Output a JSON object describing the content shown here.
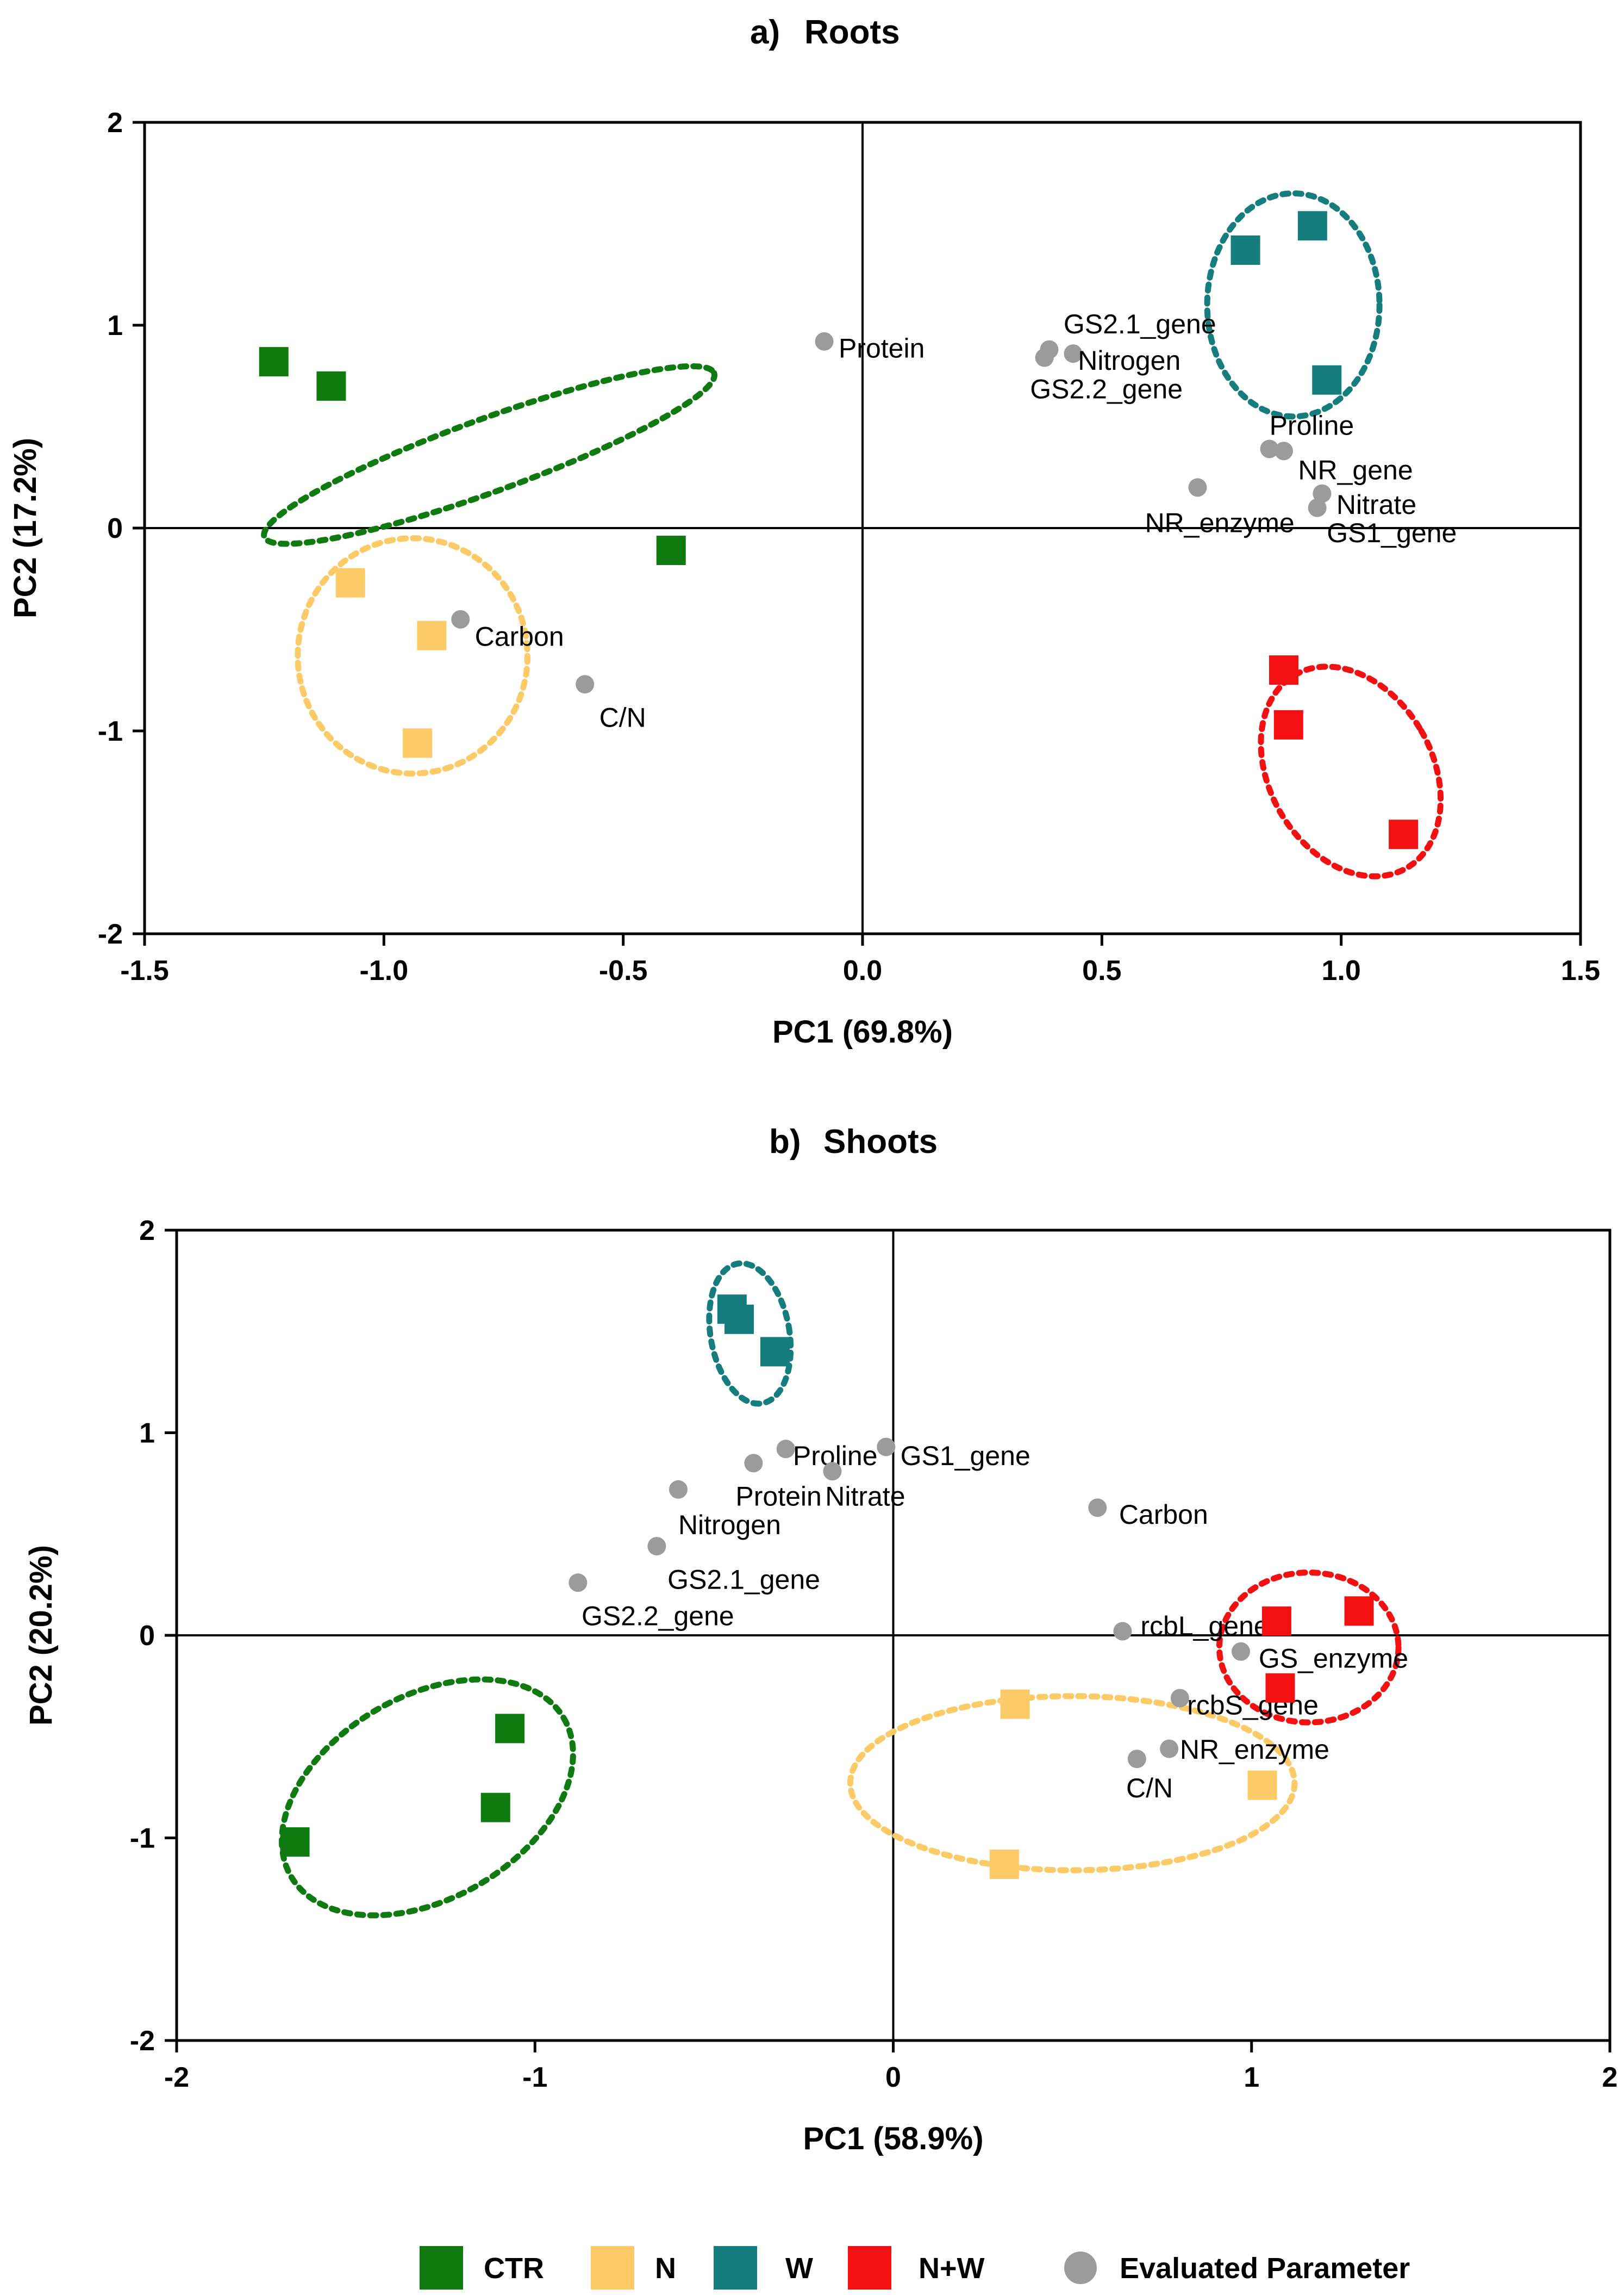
{
  "colors": {
    "CTR": "#0f7a0f",
    "N": "#fcca66",
    "W": "#167d7e",
    "N+W": "#f41010",
    "parameter": "#9b9b9b"
  },
  "legend": {
    "items": [
      {
        "key": "CTR",
        "label": "CTR",
        "marker": "square"
      },
      {
        "key": "N",
        "label": "N",
        "marker": "square"
      },
      {
        "key": "W",
        "label": "W",
        "marker": "square"
      },
      {
        "key": "N+W",
        "label": "N+W",
        "marker": "square"
      },
      {
        "key": "parameter",
        "label": "Evaluated Parameter",
        "marker": "circle"
      }
    ]
  },
  "chart_data": [
    {
      "type": "scatter",
      "panel_label": "a)",
      "title": "Roots",
      "xlabel": "PC1 (69.8%)",
      "ylabel": "PC2 (17.2%)",
      "xlim": [
        -1.5,
        1.5
      ],
      "ylim": [
        -2,
        2
      ],
      "xticks": [
        -1.5,
        -1.0,
        -0.5,
        0.0,
        0.5,
        1.0,
        1.5
      ],
      "xtick_labels": [
        "-1.5",
        "-1.0",
        "-0.5",
        "0.0",
        "0.5",
        "1.0",
        "1.5"
      ],
      "yticks": [
        -2,
        -1,
        0,
        1,
        2
      ],
      "ytick_labels": [
        "-2",
        "-1",
        "0",
        "1",
        "2"
      ],
      "groups": [
        {
          "name": "CTR",
          "points": [
            [
              -1.23,
              0.82
            ],
            [
              -1.11,
              0.7
            ],
            [
              -0.4,
              -0.11
            ]
          ]
        },
        {
          "name": "N",
          "points": [
            [
              -1.07,
              -0.27
            ],
            [
              -0.9,
              -0.53
            ],
            [
              -0.93,
              -1.06
            ]
          ]
        },
        {
          "name": "W",
          "points": [
            [
              0.8,
              1.37
            ],
            [
              0.94,
              1.49
            ],
            [
              0.97,
              0.73
            ]
          ]
        },
        {
          "name": "N+W",
          "points": [
            [
              0.88,
              -0.7
            ],
            [
              0.89,
              -0.97
            ],
            [
              1.13,
              -1.51
            ]
          ]
        }
      ],
      "ellipses": [
        {
          "group": "CTR",
          "cx": -0.78,
          "cy": 0.36,
          "rx": 0.5,
          "ry": 0.18,
          "angle_deg": -20
        },
        {
          "group": "N",
          "cx": -0.94,
          "cy": -0.63,
          "rx": 0.24,
          "ry": 0.58,
          "angle_deg": 0
        },
        {
          "group": "W",
          "cx": 0.9,
          "cy": 1.1,
          "rx": 0.18,
          "ry": 0.55,
          "angle_deg": 0
        },
        {
          "group": "N+W",
          "cx": 1.02,
          "cy": -1.2,
          "rx": 0.17,
          "ry": 0.55,
          "angle_deg": -30
        }
      ],
      "parameters": [
        {
          "name": "Protein",
          "x": -0.08,
          "y": 0.92,
          "anchor": "start",
          "dx": 0.03,
          "dy": -0.08
        },
        {
          "name": "GS2.1_gene",
          "x": 0.39,
          "y": 0.88,
          "anchor": "start",
          "dx": 0.03,
          "dy": 0.08
        },
        {
          "name": "Nitrogen",
          "x": 0.44,
          "y": 0.86,
          "anchor": "start",
          "dx": 0.01,
          "dy": -0.08
        },
        {
          "name": "GS2.2_gene",
          "x": 0.38,
          "y": 0.84,
          "anchor": "start",
          "dx": -0.03,
          "dy": -0.2
        },
        {
          "name": "Proline",
          "x": 0.85,
          "y": 0.39,
          "anchor": "start",
          "dx": 0.0,
          "dy": 0.07
        },
        {
          "name": "NR_gene",
          "x": 0.88,
          "y": 0.38,
          "anchor": "start",
          "dx": 0.03,
          "dy": -0.14
        },
        {
          "name": "Nitrate",
          "x": 0.96,
          "y": 0.17,
          "anchor": "start",
          "dx": 0.03,
          "dy": -0.1
        },
        {
          "name": "NR_enzyme",
          "x": 0.7,
          "y": 0.2,
          "anchor": "start",
          "dx": -0.11,
          "dy": -0.22
        },
        {
          "name": "GS1_gene",
          "x": 0.95,
          "y": 0.1,
          "anchor": "start",
          "dx": 0.02,
          "dy": -0.17
        },
        {
          "name": "Carbon",
          "x": -0.84,
          "y": -0.45,
          "anchor": "start",
          "dx": 0.03,
          "dy": -0.13
        },
        {
          "name": "C/N",
          "x": -0.58,
          "y": -0.77,
          "anchor": "start",
          "dx": 0.03,
          "dy": -0.21
        }
      ]
    },
    {
      "type": "scatter",
      "panel_label": "b)",
      "title": "Shoots",
      "xlabel": "PC1 (58.9%)",
      "ylabel": "PC2 (20.2%)",
      "xlim": [
        -2,
        2
      ],
      "ylim": [
        -2,
        2
      ],
      "xticks": [
        -2,
        -1,
        0,
        1,
        2
      ],
      "xtick_labels": [
        "-2",
        "-1",
        "0",
        "1",
        "2"
      ],
      "yticks": [
        -2,
        -1,
        0,
        1,
        2
      ],
      "ytick_labels": [
        "-2",
        "-1",
        "0",
        "1",
        "2"
      ],
      "groups": [
        {
          "name": "CTR",
          "points": [
            [
              -1.07,
              -0.46
            ],
            [
              -1.11,
              -0.85
            ],
            [
              -1.67,
              -1.02
            ]
          ]
        },
        {
          "name": "N",
          "points": [
            [
              0.34,
              -0.34
            ],
            [
              0.31,
              -1.13
            ],
            [
              1.03,
              -0.74
            ]
          ]
        },
        {
          "name": "W",
          "points": [
            [
              -0.45,
              1.61
            ],
            [
              -0.43,
              1.56
            ],
            [
              -0.33,
              1.4
            ]
          ]
        },
        {
          "name": "N+W",
          "points": [
            [
              1.07,
              0.07
            ],
            [
              1.3,
              0.12
            ],
            [
              1.08,
              -0.26
            ]
          ]
        }
      ],
      "ellipses": [
        {
          "group": "CTR",
          "cx": -1.3,
          "cy": -0.8,
          "rx": 0.44,
          "ry": 0.5,
          "angle_deg": -30
        },
        {
          "group": "N",
          "cx": 0.5,
          "cy": -0.73,
          "rx": 0.62,
          "ry": 0.43,
          "angle_deg": 0
        },
        {
          "group": "W",
          "cx": -0.4,
          "cy": 1.49,
          "rx": 0.11,
          "ry": 0.35,
          "angle_deg": -10
        },
        {
          "group": "N+W",
          "cx": 1.16,
          "cy": -0.06,
          "rx": 0.25,
          "ry": 0.37,
          "angle_deg": 0
        }
      ],
      "parameters": [
        {
          "name": "Proline",
          "x": -0.3,
          "y": 0.92,
          "anchor": "start",
          "dx": 0.02,
          "dy": -0.08
        },
        {
          "name": "GS1_gene",
          "x": -0.02,
          "y": 0.93,
          "anchor": "start",
          "dx": 0.04,
          "dy": -0.09
        },
        {
          "name": "Protein",
          "x": -0.39,
          "y": 0.85,
          "anchor": "start",
          "dx": -0.05,
          "dy": -0.21
        },
        {
          "name": "Nitrate",
          "x": -0.17,
          "y": 0.81,
          "anchor": "start",
          "dx": -0.02,
          "dy": -0.17
        },
        {
          "name": "Nitrogen",
          "x": -0.6,
          "y": 0.72,
          "anchor": "start",
          "dx": 0.0,
          "dy": -0.22
        },
        {
          "name": "GS2.1_gene",
          "x": -0.66,
          "y": 0.44,
          "anchor": "start",
          "dx": 0.03,
          "dy": -0.21
        },
        {
          "name": "GS2.2_gene",
          "x": -0.88,
          "y": 0.26,
          "anchor": "start",
          "dx": 0.01,
          "dy": -0.21
        },
        {
          "name": "Carbon",
          "x": 0.57,
          "y": 0.63,
          "anchor": "start",
          "dx": 0.06,
          "dy": -0.08
        },
        {
          "name": "rcbL_gene",
          "x": 0.64,
          "y": 0.02,
          "anchor": "start",
          "dx": 0.05,
          "dy": -0.02
        },
        {
          "name": "GS_enzyme",
          "x": 0.97,
          "y": -0.08,
          "anchor": "start",
          "dx": 0.05,
          "dy": -0.08
        },
        {
          "name": "rcbS_gene",
          "x": 0.8,
          "y": -0.31,
          "anchor": "start",
          "dx": 0.02,
          "dy": -0.08
        },
        {
          "name": "NR_enzyme",
          "x": 0.77,
          "y": -0.56,
          "anchor": "start",
          "dx": 0.03,
          "dy": -0.05
        },
        {
          "name": "C/N",
          "x": 0.68,
          "y": -0.61,
          "anchor": "start",
          "dx": -0.03,
          "dy": -0.19
        }
      ]
    }
  ]
}
